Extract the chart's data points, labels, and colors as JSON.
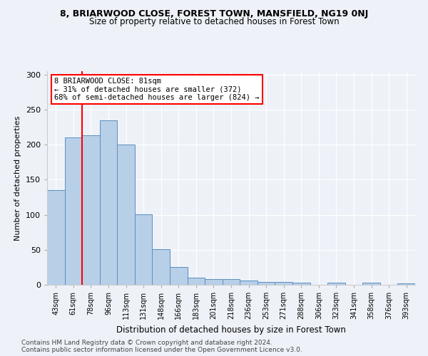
{
  "title1": "8, BRIARWOOD CLOSE, FOREST TOWN, MANSFIELD, NG19 0NJ",
  "title2": "Size of property relative to detached houses in Forest Town",
  "xlabel": "Distribution of detached houses by size in Forest Town",
  "ylabel": "Number of detached properties",
  "footnote1": "Contains HM Land Registry data © Crown copyright and database right 2024.",
  "footnote2": "Contains public sector information licensed under the Open Government Licence v3.0.",
  "categories": [
    "43sqm",
    "61sqm",
    "78sqm",
    "96sqm",
    "113sqm",
    "131sqm",
    "148sqm",
    "166sqm",
    "183sqm",
    "201sqm",
    "218sqm",
    "236sqm",
    "253sqm",
    "271sqm",
    "288sqm",
    "306sqm",
    "323sqm",
    "341sqm",
    "358sqm",
    "376sqm",
    "393sqm"
  ],
  "values": [
    135,
    210,
    213,
    235,
    200,
    101,
    51,
    25,
    10,
    8,
    8,
    6,
    4,
    4,
    3,
    0,
    3,
    0,
    3,
    0,
    2
  ],
  "bar_color": "#b8cfe8",
  "bar_edge_color": "#5a8fc0",
  "vline_color": "red",
  "vline_x_index": 1.5,
  "annotation_title": "8 BRIARWOOD CLOSE: 81sqm",
  "annotation_line1": "← 31% of detached houses are smaller (372)",
  "annotation_line2": "68% of semi-detached houses are larger (824) →",
  "annotation_box_color": "white",
  "annotation_box_edge": "red",
  "ylim": [
    0,
    305
  ],
  "yticks": [
    0,
    50,
    100,
    150,
    200,
    250,
    300
  ],
  "background_color": "#eef2f8",
  "plot_bg_color": "#eef2f8",
  "grid_color": "#ffffff"
}
